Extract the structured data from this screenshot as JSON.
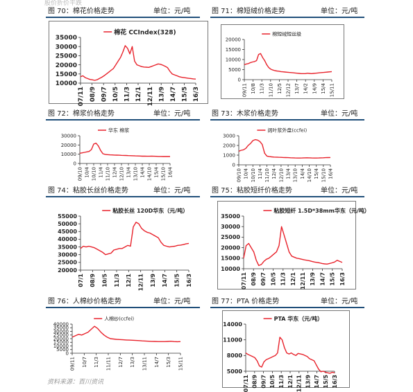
{
  "header_text": "股价折价平跌",
  "source": "资料来源：百川资讯",
  "colors": {
    "line": "#e8212a",
    "rule": "#1f4e79",
    "axis": "#333333"
  },
  "panels": [
    {
      "title": "图 70：棉花价格走势",
      "unit": "单位：元/吨"
    },
    {
      "title": "图 71：棉短绒价格走势",
      "unit": "单位：元/吨"
    },
    {
      "title": "图 72：棉浆价格走势",
      "unit": "单位：元/吨"
    },
    {
      "title": "图 73：木浆价格走势",
      "unit": "单位：元/吨"
    },
    {
      "title": "图 74：粘胶长丝价格走势",
      "unit": "单位：元/吨"
    },
    {
      "title": "图 75：粘胶短纤价格走势",
      "unit": "单位：元/吨"
    },
    {
      "title": "图 76：人棉纱价格走势",
      "unit": "单位：元/吨"
    },
    {
      "title": "图 77：PTA 价格走势",
      "unit": "单位：元/吨"
    }
  ],
  "chart_data": [
    {
      "type": "line",
      "legend": "棉花 CCIndex(328)",
      "legend_size": 9,
      "legend_bold": true,
      "tick_size": 9,
      "tick_bold": true,
      "ylim": [
        10000,
        35000
      ],
      "yticks": [
        10000,
        15000,
        20000,
        25000,
        30000,
        35000
      ],
      "xticks": [
        "07/11",
        "08/9",
        "09/7",
        "10/5",
        "11/3",
        "12/1",
        "12/11",
        "13/9",
        "14/7",
        "15/5",
        "16/3"
      ],
      "values": [
        13500,
        14000,
        13000,
        12500,
        12000,
        11800,
        11500,
        11800,
        12500,
        13200,
        14000,
        15000,
        16000,
        17000,
        18000,
        20000,
        22000,
        24000,
        27000,
        30500,
        29000,
        26000,
        30000,
        22000,
        20000,
        19500,
        19000,
        18800,
        18700,
        18600,
        19000,
        19500,
        20000,
        20500,
        20300,
        19800,
        19200,
        18500,
        16500,
        15000,
        14500,
        14000,
        13500,
        13200,
        13000,
        12800,
        12600,
        12500,
        12300,
        12200
      ]
    },
    {
      "type": "line",
      "legend": "棉短绒短丝级",
      "legend_size": 7,
      "legend_bold": false,
      "tick_size": 7,
      "tick_bold": false,
      "ylim": [
        0,
        20000
      ],
      "yticks": [
        0,
        5000,
        10000,
        15000,
        20000
      ],
      "xticks": [
        "09/11",
        "10/8",
        "11/3",
        "11/10",
        "12/5",
        "12/12",
        "13/7",
        "14/2",
        "14/9",
        "15/4",
        "15/11"
      ],
      "values": [
        7500,
        7800,
        8000,
        8500,
        8800,
        9000,
        9500,
        12500,
        13000,
        11000,
        9500,
        7500,
        6000,
        5200,
        4800,
        4500,
        4300,
        4200,
        4000,
        3900,
        3800,
        3700,
        3600,
        3500,
        3400,
        3300,
        3200,
        3100,
        3000,
        3000,
        3000,
        3200,
        3100,
        3000,
        3100,
        3200,
        3300,
        3400,
        3500,
        3600,
        3700,
        3800,
        3900,
        4000
      ]
    },
    {
      "type": "line",
      "legend": "华东 棉浆",
      "legend_size": 7,
      "legend_bold": false,
      "tick_size": 7,
      "tick_bold": false,
      "ylim": [
        0,
        30000
      ],
      "yticks": [
        0,
        10000,
        20000,
        30000
      ],
      "xticks": [
        "09/10",
        "10/4",
        "10/10",
        "11/4",
        "11/10",
        "12/4",
        "12/10",
        "13/4",
        "13/10",
        "14/4",
        "14/10",
        "15/4",
        "15/10",
        "16/4"
      ],
      "values": [
        11000,
        11500,
        12000,
        12500,
        13000,
        15000,
        21000,
        22000,
        19000,
        14000,
        10500,
        9800,
        9500,
        9300,
        9200,
        9100,
        9000,
        8900,
        8800,
        8700,
        8600,
        8500,
        8400,
        8300,
        8200,
        8100,
        8000,
        7900,
        7900,
        7800,
        7800,
        7900,
        7800,
        7700,
        7600,
        7600,
        7500,
        7600,
        7500,
        7500
      ]
    },
    {
      "type": "line",
      "legend": "阔叶浆外盘(ccfei)",
      "legend_size": 7,
      "legend_bold": false,
      "tick_size": 7,
      "tick_bold": false,
      "ylim": [
        0,
        3000
      ],
      "yticks": [
        0,
        1000,
        2000,
        3000
      ],
      "xticks": [
        "09/10",
        "10/4",
        "10/10",
        "11/4",
        "11/10",
        "12/4",
        "12/10",
        "13/4",
        "13/10",
        "14/4",
        "14/10",
        "15/4",
        "15/10",
        "16/4"
      ],
      "values": [
        1400,
        1500,
        1550,
        1700,
        2000,
        2200,
        2500,
        2600,
        2550,
        2400,
        2100,
        1200,
        900,
        850,
        820,
        800,
        790,
        780,
        770,
        760,
        750,
        740,
        730,
        720,
        710,
        700,
        700,
        710,
        720,
        730,
        720,
        710,
        700,
        700,
        710,
        720,
        730,
        740,
        750,
        760
      ]
    },
    {
      "type": "line",
      "legend": "粘胶长丝 120D华东（元/吨）",
      "legend_size": 8,
      "legend_bold": true,
      "tick_size": 8,
      "tick_bold": true,
      "ylim": [
        20000,
        55000
      ],
      "yticks": [
        20000,
        25000,
        30000,
        35000,
        40000,
        45000,
        50000,
        55000
      ],
      "xticks": [
        "07/1",
        "08/9",
        "10/5",
        "11/3",
        "12/1",
        "12/11",
        "13/9",
        "14/7",
        "15/5",
        "16/3"
      ],
      "values": [
        34000,
        35500,
        35000,
        35500,
        35000,
        34500,
        33500,
        32500,
        31500,
        30000,
        30500,
        31000,
        33000,
        33500,
        34000,
        34000,
        35000,
        36000,
        35500,
        48000,
        51000,
        50000,
        47000,
        45500,
        44500,
        44000,
        43000,
        42000,
        41000,
        38000,
        36000,
        35500,
        35000,
        35300,
        35500,
        36000,
        36200,
        36500,
        37000,
        37300
      ]
    },
    {
      "type": "line",
      "legend": "粘胶短纤 1.5D*38mm华东（元/吨）",
      "legend_size": 8,
      "legend_bold": true,
      "tick_size": 8,
      "tick_bold": true,
      "ylim": [
        10000,
        35000
      ],
      "yticks": [
        10000,
        15000,
        20000,
        25000,
        30000,
        35000
      ],
      "xticks": [
        "07/11",
        "08/9",
        "09/7",
        "10/5",
        "11/3",
        "12/1",
        "12/11",
        "13/9",
        "14/7",
        "15/5",
        "16/3"
      ],
      "values": [
        15000,
        21000,
        22000,
        20000,
        18000,
        14000,
        11500,
        12000,
        13500,
        14500,
        15000,
        16000,
        17000,
        18000,
        21000,
        30000,
        26000,
        22000,
        18000,
        16000,
        15500,
        15000,
        14800,
        14500,
        14200,
        14000,
        13800,
        13500,
        13200,
        13000,
        12800,
        12500,
        12300,
        12200,
        12500,
        12800,
        13200,
        14000,
        13500,
        13000
      ]
    },
    {
      "type": "line",
      "legend": "人棉纱(ccfei)",
      "legend_size": 7,
      "legend_bold": false,
      "tick_size": 7,
      "tick_bold": false,
      "ylim": [
        0,
        40000
      ],
      "yticks": [
        0,
        5000,
        10000,
        15000,
        20000,
        25000,
        30000,
        35000,
        40000
      ],
      "xticks": [
        "09/11",
        "10/7",
        "11/3",
        "11/11",
        "12/7",
        "13/3",
        "13/11",
        "14/7",
        "15/3",
        "15/11"
      ],
      "values": [
        22000,
        24000,
        26000,
        25000,
        27000,
        29000,
        33000,
        37000,
        34000,
        29000,
        25000,
        22000,
        20000,
        19500,
        19000,
        18800,
        18500,
        18200,
        18000,
        17800,
        17500,
        17300,
        17000,
        16800,
        16500,
        16300,
        16200,
        16000,
        16000,
        16000,
        16200,
        16500,
        16000,
        15800,
        16000
      ]
    },
    {
      "type": "line",
      "legend": "PTA 华东（元/吨）",
      "legend_size": 8,
      "legend_bold": true,
      "tick_size": 8,
      "tick_bold": true,
      "ylim": [
        5000,
        14000
      ],
      "yticks": [
        5000,
        8000,
        11000,
        14000
      ],
      "xticks": [
        "07/11",
        "08/9",
        "09/7",
        "10/5",
        "11/3",
        "12/1",
        "12/11",
        "13/9",
        "14/7",
        "15/5",
        "16/3"
      ],
      "values": [
        8500,
        8200,
        8000,
        7800,
        7600,
        7000,
        6000,
        5800,
        6800,
        7200,
        7400,
        7600,
        7800,
        8000,
        8500,
        11500,
        11000,
        9500,
        8500,
        8300,
        8500,
        8200,
        8000,
        8400,
        8300,
        8200,
        8000,
        7800,
        7400,
        7200,
        7000,
        6200,
        5400,
        4900,
        5000,
        4800,
        4700,
        4600,
        4800,
        4700
      ]
    }
  ]
}
